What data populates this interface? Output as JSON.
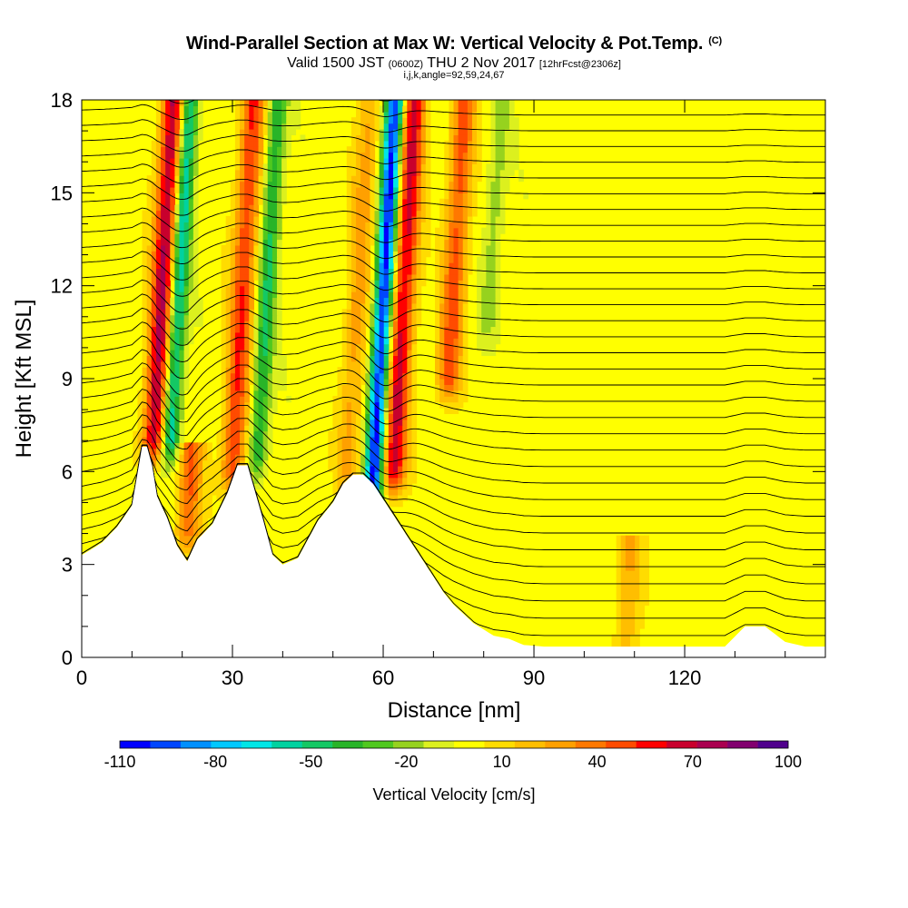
{
  "header": {
    "title": "Wind-Parallel Section at Max W: Vertical Velocity & Pot.Temp.",
    "copyright": "(C)",
    "valid_main": "Valid 1500 JST",
    "valid_utc": "(0600Z)",
    "valid_date": "THU 2 Nov 2017",
    "forecast": "[12hrFcst@2306z]",
    "indices": "i,j,k,angle=92,59,24,67"
  },
  "chart_data": {
    "type": "heatmap",
    "xlabel": "Distance [nm]",
    "ylabel": "Height [Kft MSL]",
    "xlim": [
      0,
      148
    ],
    "ylim": [
      0,
      18
    ],
    "x_ticks": [
      0,
      30,
      60,
      90,
      120
    ],
    "y_ticks": [
      0,
      3,
      6,
      9,
      12,
      15,
      18
    ],
    "colorbar": {
      "label": "Vertical Velocity [cm/s]",
      "tick_labels": [
        "-110",
        "-80",
        "-50",
        "-20",
        "10",
        "40",
        "70",
        "100"
      ],
      "tick_values": [
        -110,
        -80,
        -50,
        -20,
        10,
        40,
        70,
        100
      ],
      "min": -110,
      "max": 100,
      "step": 10,
      "colors": [
        "#0000ff",
        "#0046ff",
        "#0090ff",
        "#00c8ff",
        "#00e6e6",
        "#00d2a0",
        "#14c864",
        "#28b428",
        "#50c81e",
        "#96d21e",
        "#dcf01e",
        "#ffff00",
        "#ffdc00",
        "#ffbe00",
        "#ffa000",
        "#ff7800",
        "#ff4b00",
        "#ff0000",
        "#c8002d",
        "#aa0050",
        "#82006e",
        "#50008c"
      ]
    },
    "terrain_height_kft": {
      "x": [
        0,
        4,
        7,
        10,
        12,
        13,
        14,
        15,
        17,
        19,
        21,
        23,
        26,
        29,
        31,
        33,
        36,
        38,
        40,
        43,
        45,
        47,
        50,
        52,
        54,
        56,
        58,
        60,
        62,
        64,
        66,
        68,
        70,
        72,
        74,
        76,
        78,
        80,
        82,
        85,
        88,
        92,
        96,
        100,
        104,
        108,
        112,
        116,
        120,
        124,
        128,
        132,
        136,
        140,
        144,
        148
      ],
      "y": [
        3.3,
        3.7,
        4.2,
        4.9,
        6.8,
        6.8,
        6.2,
        5.2,
        4.5,
        3.6,
        3.1,
        3.8,
        4.3,
        5.3,
        6.2,
        6.2,
        4.5,
        3.3,
        3.0,
        3.2,
        3.8,
        4.4,
        5.0,
        5.6,
        5.9,
        5.9,
        5.6,
        5.1,
        4.6,
        4.1,
        3.6,
        3.1,
        2.6,
        2.1,
        1.7,
        1.4,
        1.1,
        0.9,
        0.7,
        0.6,
        0.4,
        0.35,
        0.35,
        0.35,
        0.35,
        0.35,
        0.35,
        0.35,
        0.35,
        0.35,
        0.35,
        1.0,
        1.0,
        0.5,
        0.35,
        0.35
      ]
    },
    "velocity_features": [
      {
        "type": "updraft",
        "x": 14.5,
        "w_cm_s": 80,
        "from_kft": 7,
        "to_kft": 18
      },
      {
        "type": "downdraft",
        "x": 17.5,
        "w_cm_s": -70,
        "from_kft": 7,
        "to_kft": 18
      },
      {
        "type": "updraft",
        "x": 21,
        "w_cm_s": 45,
        "from_kft": 4,
        "to_kft": 6
      },
      {
        "type": "updraft",
        "x": 30,
        "w_cm_s": 55,
        "from_kft": 6,
        "to_kft": 18
      },
      {
        "type": "downdraft",
        "x": 35,
        "w_cm_s": -45,
        "from_kft": 6.5,
        "to_kft": 18
      },
      {
        "type": "updraft",
        "x": 53,
        "w_cm_s": 30,
        "from_kft": 6,
        "to_kft": 18
      },
      {
        "type": "downdraft",
        "x": 58,
        "w_cm_s": -110,
        "from_kft": 5.5,
        "to_kft": 18
      },
      {
        "type": "updraft",
        "x": 62,
        "w_cm_s": 70,
        "from_kft": 6,
        "to_kft": 18
      },
      {
        "type": "updraft",
        "x": 73,
        "w_cm_s": 50,
        "from_kft": 9,
        "to_kft": 18
      },
      {
        "type": "downdraft",
        "x": 81,
        "w_cm_s": -20,
        "from_kft": 11,
        "to_kft": 18
      },
      {
        "type": "updraft",
        "x": 108,
        "w_cm_s": 25,
        "from_kft": 0,
        "to_kft": 3
      }
    ]
  }
}
